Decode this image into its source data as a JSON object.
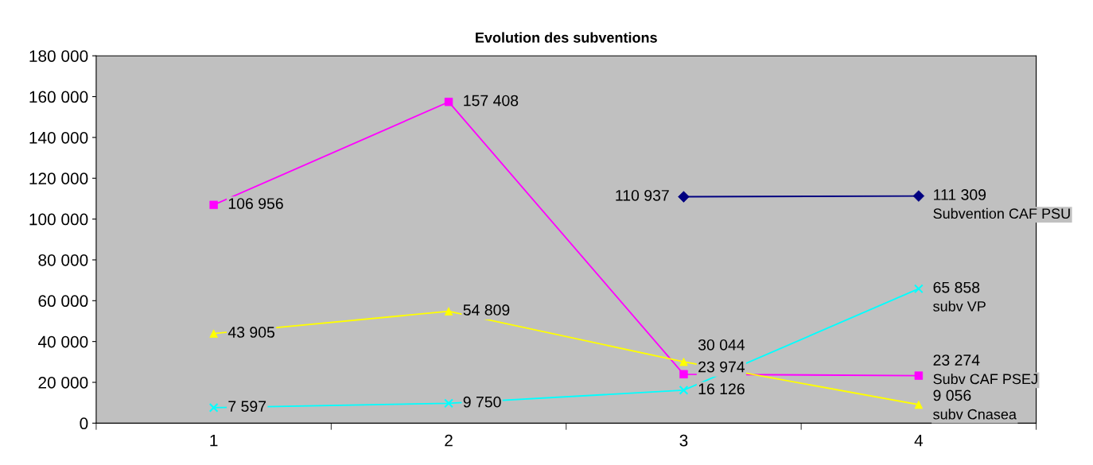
{
  "chart_data": {
    "type": "line",
    "title": "Evolution des subventions",
    "categories": [
      "1",
      "2",
      "3",
      "4"
    ],
    "series": [
      {
        "name": "Subvention CAF PSU",
        "color": "#000080",
        "marker": "diamond",
        "values": [
          null,
          null,
          110937,
          111309
        ],
        "value_labels": [
          null,
          null,
          "110 937",
          "111 309"
        ]
      },
      {
        "name": "subv VP",
        "color": "#00ffff",
        "marker": "cross",
        "values": [
          7597,
          9750,
          16126,
          65858
        ],
        "value_labels": [
          "7 597",
          "9 750",
          "16 126",
          "65 858"
        ]
      },
      {
        "name": "Subv CAF PSEJ",
        "color": "#ff00ff",
        "marker": "square",
        "values": [
          106956,
          157408,
          23974,
          23274
        ],
        "value_labels": [
          "106 956",
          "157 408",
          "23 974",
          "23 274"
        ]
      },
      {
        "name": "subv Cnasea",
        "color": "#ffff00",
        "marker": "triangle",
        "values": [
          43905,
          54809,
          30044,
          9056
        ],
        "value_labels": [
          "43 905",
          "54 809",
          "30 044",
          "9 056"
        ]
      }
    ],
    "ylim": [
      0,
      180000
    ],
    "yticks": [
      {
        "value": 0,
        "label": "0"
      },
      {
        "value": 20000,
        "label": "20 000"
      },
      {
        "value": 40000,
        "label": "40 000"
      },
      {
        "value": 60000,
        "label": "60 000"
      },
      {
        "value": 80000,
        "label": "80 000"
      },
      {
        "value": 100000,
        "label": "100 000"
      },
      {
        "value": 120000,
        "label": "120 000"
      },
      {
        "value": 140000,
        "label": "140 000"
      },
      {
        "value": 160000,
        "label": "160 000"
      },
      {
        "value": 180000,
        "label": "180 000"
      }
    ],
    "grid": false,
    "legend": false,
    "line_style": "solid"
  }
}
